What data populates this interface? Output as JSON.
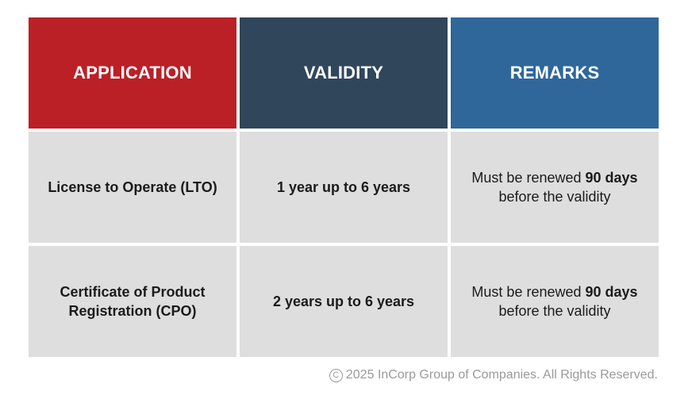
{
  "table": {
    "headers": [
      "APPLICATION",
      "VALIDITY",
      "REMARKS"
    ],
    "header_colors": [
      "#bb2026",
      "#30465b",
      "#2f679b"
    ],
    "rows": [
      {
        "application": "License to Operate (LTO)",
        "validity": "1 year up to 6 years",
        "remarks": {
          "prefix": "Must be renewed ",
          "emphasis": "90 days",
          "suffix": "before the validity"
        }
      },
      {
        "application_line1": "Certificate of Product",
        "application_line2": "Registration (CPO)",
        "validity": "2 years up to 6 years",
        "remarks": {
          "prefix": "Must be renewed ",
          "emphasis": "90 days",
          "suffix": "before the validity"
        }
      }
    ]
  },
  "footer": {
    "icon": "copyright-icon",
    "symbol": "C",
    "text": "2025 InCorp Group of Companies. All Rights Reserved."
  }
}
